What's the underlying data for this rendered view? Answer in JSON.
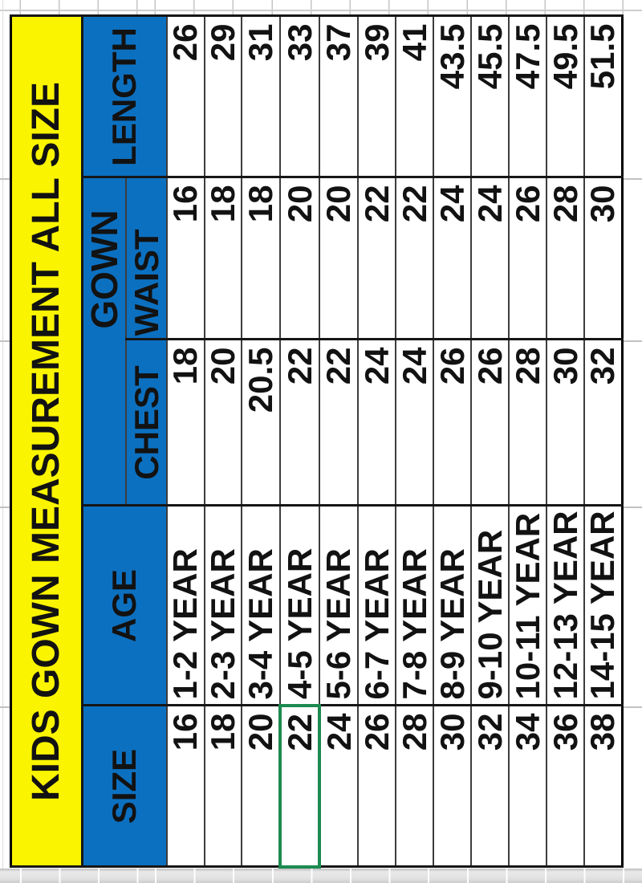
{
  "title": "KIDS GOWN MEASUREMENT ALL SIZE",
  "colors": {
    "title_bg": "#FAF400",
    "header_bg": "#0C70C0",
    "border_black": "#161616",
    "selection_green": "#1D8A50",
    "gridline_gray": "#C5C5C5"
  },
  "table": {
    "headers": {
      "size": "SIZE",
      "age": "AGE",
      "group": "GOWN",
      "chest": "CHEST",
      "waist": "WAIST",
      "length": "LENGTH"
    },
    "rows": [
      {
        "size": "16",
        "age": "1-2 YEAR",
        "chest": "18",
        "waist": "16",
        "length": "26"
      },
      {
        "size": "18",
        "age": "2-3 YEAR",
        "chest": "20",
        "waist": "18",
        "length": "29"
      },
      {
        "size": "20",
        "age": "3-4 YEAR",
        "chest": "20.5",
        "waist": "18",
        "length": "31"
      },
      {
        "size": "22",
        "age": "4-5 YEAR",
        "chest": "22",
        "waist": "20",
        "length": "33"
      },
      {
        "size": "24",
        "age": "5-6 YEAR",
        "chest": "22",
        "waist": "20",
        "length": "37"
      },
      {
        "size": "26",
        "age": "6-7 YEAR",
        "chest": "24",
        "waist": "22",
        "length": "39"
      },
      {
        "size": "28",
        "age": "7-8 YEAR",
        "chest": "24",
        "waist": "22",
        "length": "41"
      },
      {
        "size": "30",
        "age": "8-9 YEAR",
        "chest": "26",
        "waist": "24",
        "length": "43.5"
      },
      {
        "size": "32",
        "age": "9-10 YEAR",
        "chest": "26",
        "waist": "24",
        "length": "45.5"
      },
      {
        "size": "34",
        "age": "10-11 YEAR",
        "chest": "28",
        "waist": "26",
        "length": "47.5"
      },
      {
        "size": "36",
        "age": "12-13 YEAR",
        "chest": "30",
        "waist": "28",
        "length": "49.5"
      },
      {
        "size": "38",
        "age": "14-15 YEAR",
        "chest": "32",
        "waist": "30",
        "length": "51.5"
      }
    ]
  },
  "selection": {
    "row_index": 3,
    "field": "size"
  }
}
